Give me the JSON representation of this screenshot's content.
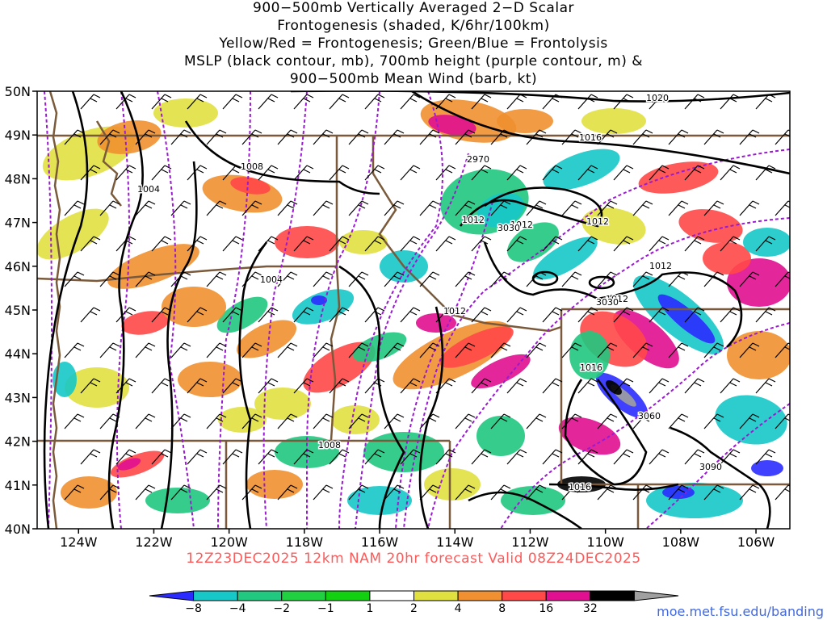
{
  "title_lines": [
    "900−500mb Vertically Averaged 2−D Scalar",
    "Frontogenesis (shaded, K/6hr/100km)",
    "Yellow/Red = Frontogenesis;  Green/Blue = Frontolysis",
    "MSLP (black contour, mb), 700mb height (purple contour, m) &",
    "900−500mb Mean Wind (barb, kt)"
  ],
  "latitude_labels": [
    "50N",
    "49N",
    "48N",
    "47N",
    "46N",
    "45N",
    "44N",
    "43N",
    "42N",
    "41N",
    "40N"
  ],
  "longitude_labels": [
    "124W",
    "122W",
    "120W",
    "118W",
    "116W",
    "114W",
    "112W",
    "110W",
    "108W",
    "106W"
  ],
  "mslp_contour_labels": [
    "1020",
    "1016",
    "1008",
    "1004",
    "1012",
    "1012",
    "1004",
    "1012",
    "1012",
    "1012",
    "1016",
    "1008",
    "1016",
    "1012"
  ],
  "height_contour_labels": [
    "2970",
    "3030",
    "3030",
    "3060",
    "3090"
  ],
  "valid_text": "12Z23DEC2025 12km NAM 20hr forecast Valid 08Z24DEC2025",
  "colorbar": {
    "ticks": [
      "−8",
      "−4",
      "−2",
      "−1",
      "1",
      "2",
      "4",
      "8",
      "16",
      "32"
    ],
    "colors": [
      "#2b2bff",
      "#16c8c8",
      "#20c880",
      "#20d040",
      "#11d111",
      "#ffffff",
      "#e0e040",
      "#f09030",
      "#ff4848",
      "#e01090",
      "#000000",
      "#a0a0a0"
    ]
  },
  "colors": {
    "mslp": "#000000",
    "height": "#9a1ad0",
    "borders": "#7a5a3a",
    "valid_text": "#ff5a5a",
    "url": "#4169e1"
  },
  "site_url": "moe.met.fsu.edu/banding"
}
